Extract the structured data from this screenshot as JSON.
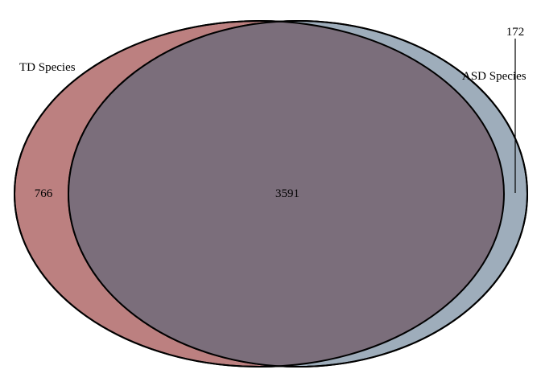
{
  "venn": {
    "sets": [
      {
        "name": "TD Species",
        "color": "#bc8080"
      },
      {
        "name": "ASD Species",
        "color": "#9eadbb"
      }
    ],
    "regions": {
      "td_only": "766",
      "overlap": "3591",
      "asd_only": "172"
    },
    "overlap_color": "#7b6e7b"
  }
}
